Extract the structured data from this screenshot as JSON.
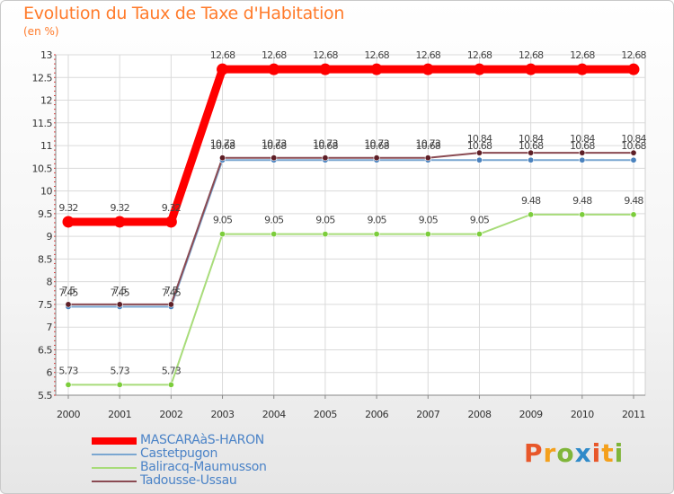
{
  "chart_data": {
    "type": "line",
    "title": "Evolution du Taux de Taxe d'Habitation",
    "subtitle": "(en %)",
    "x": [
      "2000",
      "2001",
      "2002",
      "2003",
      "2004",
      "2005",
      "2006",
      "2007",
      "2008",
      "2009",
      "2010",
      "2011"
    ],
    "ylim": [
      5.5,
      13
    ],
    "yticks": [
      5.5,
      6,
      6.5,
      7,
      7.5,
      8,
      8.5,
      9,
      9.5,
      10,
      10.5,
      11,
      11.5,
      12,
      12.5,
      13
    ],
    "ytick_labels": [
      "5.5",
      "6",
      "6.5",
      "7",
      "7.5",
      "8",
      "8.5",
      "9",
      "9.5",
      "10",
      "10.5",
      "11",
      "11.5",
      "12",
      "12.5",
      "13"
    ],
    "grid": true,
    "series": [
      {
        "name": "MASCARAàS-HARON",
        "color": "#ff0000",
        "width": 9,
        "values": [
          9.32,
          9.32,
          9.32,
          12.68,
          12.68,
          12.68,
          12.68,
          12.68,
          12.68,
          12.68,
          12.68,
          12.68
        ],
        "labels": [
          "9.32",
          "9.32",
          "9.32",
          "12.68",
          "12.68",
          "12.68",
          "12.68",
          "12.68",
          "12.68",
          "12.68",
          "12.68",
          "12.68"
        ]
      },
      {
        "name": "Castetpugon",
        "color": "#7ba7d1",
        "marker": "#4a82be",
        "width": 2,
        "values": [
          7.45,
          7.45,
          7.45,
          10.68,
          10.68,
          10.68,
          10.68,
          10.68,
          10.68,
          10.68,
          10.68,
          10.68
        ],
        "labels": [
          "7.45",
          "7.45",
          "7.45",
          "10.68",
          "10.68",
          "10.68",
          "10.68",
          "10.68",
          "10.68",
          "10.68",
          "10.68",
          "10.68"
        ]
      },
      {
        "name": "Baliracq-Maumusson",
        "color": "#a8dc7a",
        "marker": "#7ccd3c",
        "width": 2,
        "values": [
          5.73,
          5.73,
          5.73,
          9.05,
          9.05,
          9.05,
          9.05,
          9.05,
          9.05,
          9.48,
          9.48,
          9.48
        ],
        "labels": [
          "5.73",
          "5.73",
          "5.73",
          "9.05",
          "9.05",
          "9.05",
          "9.05",
          "9.05",
          "9.05",
          "9.48",
          "9.48",
          "9.48"
        ]
      },
      {
        "name": "Tadousse-Ussau",
        "color": "#8a4a52",
        "marker": "#5e1f27",
        "width": 2,
        "values": [
          7.5,
          7.5,
          7.5,
          10.73,
          10.73,
          10.73,
          10.73,
          10.73,
          10.84,
          10.84,
          10.84,
          10.84
        ],
        "labels": [
          "7.5",
          "7.5",
          "7.5",
          "10.73",
          "10.73",
          "10.73",
          "10.73",
          "10.73",
          "10.84",
          "10.84",
          "10.84",
          "10.84"
        ]
      }
    ],
    "legend_position": "bottom-left"
  },
  "logo": {
    "letters": [
      "P",
      "r",
      "o",
      "x",
      "i",
      "t",
      "i"
    ]
  }
}
